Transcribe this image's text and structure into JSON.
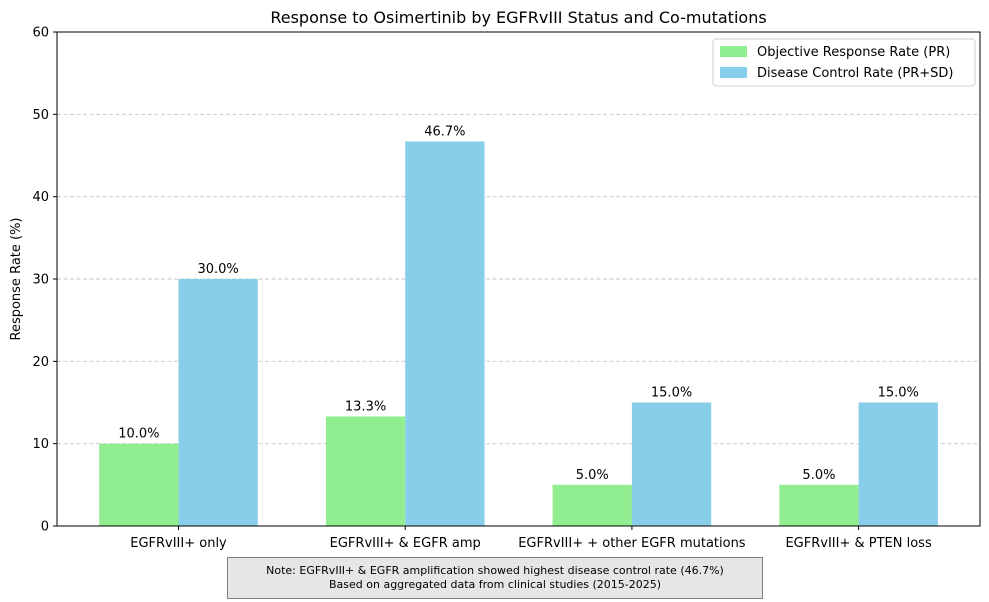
{
  "chart_data": {
    "type": "bar",
    "title": "Response to Osimertinib by EGFRvIII Status and Co-mutations",
    "xlabel": "",
    "ylabel": "Response Rate (%)",
    "ylim": [
      0,
      60
    ],
    "yticks": [
      0,
      10,
      20,
      30,
      40,
      50,
      60
    ],
    "grid": "y-dashed",
    "legend_position": "top-right",
    "categories": [
      "EGFRvIII+ only",
      "EGFRvIII+ & EGFR amp",
      "EGFRvIII+ + other EGFR mutations",
      "EGFRvIII+ & PTEN loss"
    ],
    "series": [
      {
        "name": "Objective Response Rate (PR)",
        "color": "#90ee90",
        "values": [
          10.0,
          13.3,
          5.0,
          5.0
        ],
        "data_labels": [
          "10.0%",
          "13.3%",
          "5.0%",
          "5.0%"
        ]
      },
      {
        "name": "Disease Control Rate (PR+SD)",
        "color": "#87ceeb",
        "values": [
          30.0,
          46.7,
          15.0,
          15.0
        ],
        "data_labels": [
          "30.0%",
          "46.7%",
          "15.0%",
          "15.0%"
        ]
      }
    ]
  },
  "note": {
    "line1": "Note: EGFRvIII+ & EGFR amplification showed highest disease control rate (46.7%)",
    "line2": "Based on aggregated data from clinical studies (2015-2025)"
  }
}
